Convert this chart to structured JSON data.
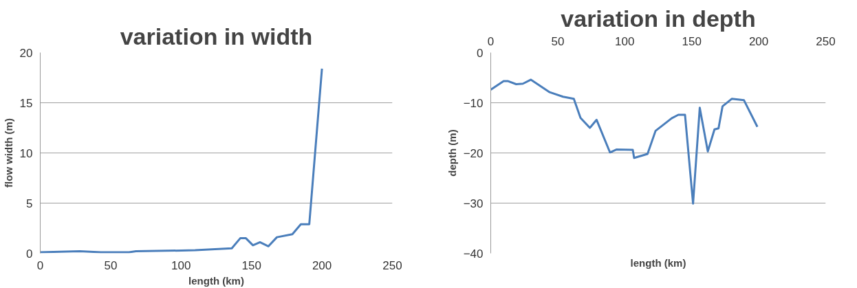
{
  "chart_data": [
    {
      "type": "line",
      "title": "variation in width",
      "xlabel": "length (km)",
      "ylabel": "flow width (m)",
      "grid": "y",
      "xlim": [
        0,
        250
      ],
      "ylim": [
        0,
        20
      ],
      "xticks": [
        0,
        50,
        100,
        150,
        200,
        250
      ],
      "yticks": [
        0,
        5,
        10,
        15,
        20
      ],
      "series": [
        {
          "color": "#4a7ebb",
          "x": [
            0,
            28,
            43,
            63,
            68,
            110,
            136,
            142,
            146,
            151,
            156,
            162,
            168,
            179,
            185,
            191,
            200
          ],
          "values": [
            0.1,
            0.2,
            0.1,
            0.1,
            0.2,
            0.3,
            0.5,
            1.5,
            1.5,
            0.8,
            1.1,
            0.7,
            1.6,
            1.9,
            2.9,
            2.9,
            18.4
          ]
        }
      ]
    },
    {
      "type": "line",
      "title": "variation in depth",
      "xlabel": "length (km)",
      "ylabel": "depth (m)",
      "grid": "y",
      "xlim": [
        0,
        250
      ],
      "ylim": [
        -40,
        0
      ],
      "xticks": [
        0,
        50,
        100,
        150,
        200,
        250
      ],
      "yticks": [
        -40,
        -30,
        -20,
        -10,
        0
      ],
      "series": [
        {
          "color": "#4a7ebb",
          "x": [
            0,
            9.6,
            13,
            19,
            24,
            30,
            44,
            54,
            62,
            67,
            74,
            79,
            89,
            94,
            106,
            107,
            117,
            123,
            135,
            140,
            145,
            151,
            156,
            162,
            167,
            170,
            173,
            180,
            189,
            199
          ],
          "values": [
            -7.4,
            -5.7,
            -5.7,
            -6.3,
            -6.2,
            -5.4,
            -7.9,
            -8.8,
            -9.2,
            -13,
            -15,
            -13.4,
            -19.9,
            -19.3,
            -19.4,
            -21,
            -20.2,
            -15.6,
            -13.1,
            -12.4,
            -12.4,
            -30.1,
            -11,
            -19.7,
            -15.3,
            -15.1,
            -10.7,
            -9.2,
            -9.5,
            -14.8
          ]
        }
      ]
    }
  ]
}
